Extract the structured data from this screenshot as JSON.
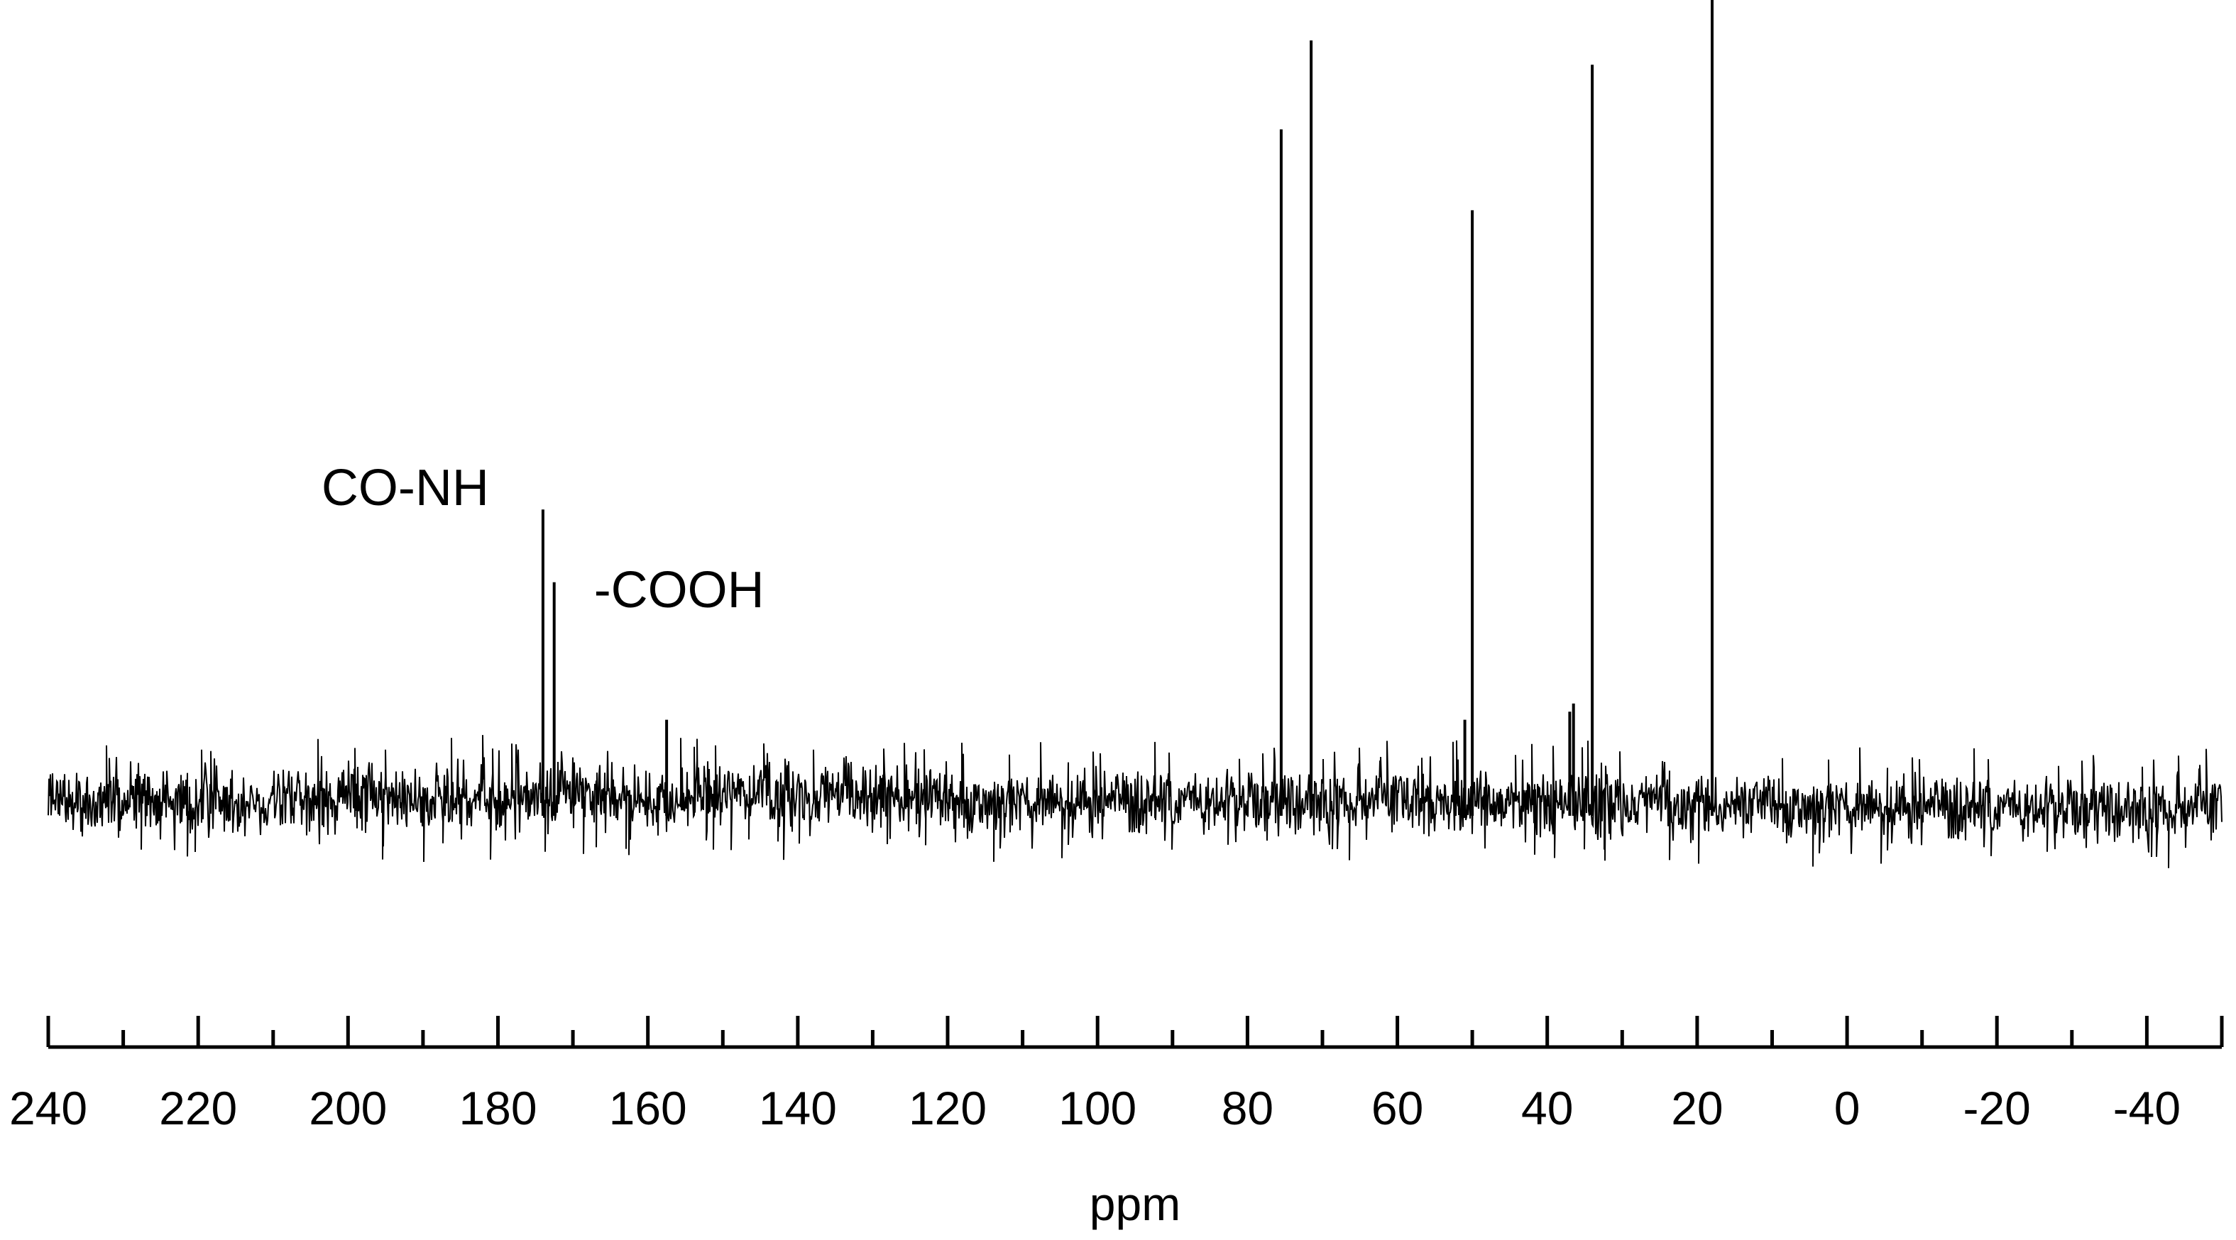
{
  "chart_data": {
    "type": "line",
    "xlabel": "ppm",
    "ylabel": "",
    "xlim": [
      240,
      -50
    ],
    "x_reversed": true,
    "grid": false,
    "legend": "none",
    "x_ticks_major": [
      240,
      220,
      200,
      180,
      160,
      140,
      120,
      100,
      80,
      60,
      40,
      20,
      0,
      -20,
      -40
    ],
    "x_tick_labels": [
      "240",
      "220",
      "200",
      "180",
      "160",
      "140",
      "120",
      "100",
      "80",
      "60",
      "40",
      "20",
      "0",
      "-20",
      "-40"
    ],
    "x_ticks_minor": [
      230,
      210,
      190,
      170,
      150,
      130,
      110,
      90,
      70,
      50,
      30,
      10,
      -10,
      -30
    ],
    "series": [
      {
        "peaks": [
          {
            "x": 174.0,
            "height": 0.37
          },
          {
            "x": 172.5,
            "height": 0.28
          },
          {
            "x": 157.5,
            "height": 0.11
          },
          {
            "x": 75.5,
            "height": 0.84
          },
          {
            "x": 71.5,
            "height": 0.95
          },
          {
            "x": 51.0,
            "height": 0.11
          },
          {
            "x": 50.0,
            "height": 0.74
          },
          {
            "x": 37.0,
            "height": 0.12
          },
          {
            "x": 36.5,
            "height": 0.13
          },
          {
            "x": 34.0,
            "height": 0.92
          },
          {
            "x": 18.0,
            "height": 1.0
          }
        ]
      }
    ],
    "annotations": [
      {
        "text": "CO-NH",
        "x": 174.0
      },
      {
        "text": "-COOH",
        "x": 172.5
      }
    ],
    "colors": {
      "line": "#000000",
      "background": "#ffffff"
    }
  }
}
